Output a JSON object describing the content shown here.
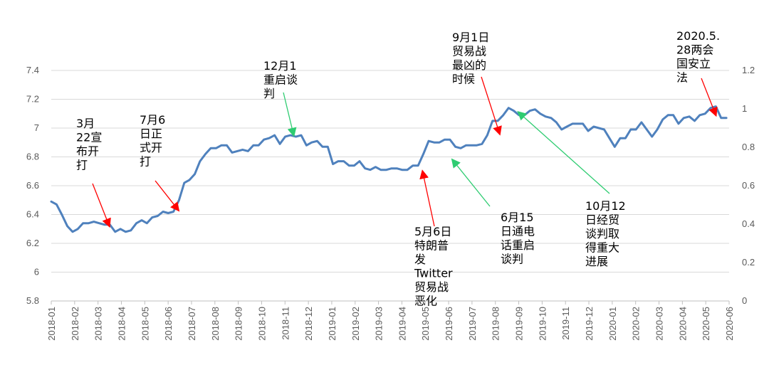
{
  "chart_data": {
    "type": "line",
    "title": "",
    "xlabel": "",
    "ylabel": "",
    "ylim": [
      5.8,
      7.4
    ],
    "yticks": [
      5.8,
      6,
      6.2,
      6.4,
      6.6,
      6.8,
      7,
      7.2,
      7.4
    ],
    "ytick_labels": [
      "5.8",
      "6",
      "6.2",
      "6.4",
      "6.6",
      "6.8",
      "7",
      "7.2",
      "7.4"
    ],
    "y2lim": [
      0,
      1.2
    ],
    "y2ticks": [
      0,
      0.2,
      0.4,
      0.6,
      0.8,
      1,
      1.2
    ],
    "y2tick_labels": [
      "0",
      "0.2",
      "0.4",
      "0.6",
      "0.8",
      "1",
      "1.2"
    ],
    "grid": true,
    "legend": "none",
    "line_color": "#4f81bd",
    "x_tick_labels": [
      "2018-01",
      "2018-02",
      "2018-03",
      "2018-04",
      "2018-05",
      "2018-06",
      "2018-07",
      "2018-08",
      "2018-09",
      "2018-10",
      "2018-11",
      "2018-12",
      "2019-01",
      "2019-02",
      "2019-03",
      "2019-04",
      "2019-05",
      "2019-06",
      "2019-07",
      "2019-08",
      "2019-09",
      "2019-10",
      "2019-11",
      "2019-12",
      "2020-01",
      "2020-02",
      "2020-03",
      "2020-04",
      "2020-05",
      "2020-06"
    ],
    "series": [
      {
        "name": "",
        "x": [
          2018.0,
          2018.019,
          2018.038,
          2018.058,
          2018.077,
          2018.096,
          2018.115,
          2018.135,
          2018.154,
          2018.173,
          2018.192,
          2018.212,
          2018.231,
          2018.25,
          2018.269,
          2018.288,
          2018.308,
          2018.327,
          2018.346,
          2018.365,
          2018.385,
          2018.404,
          2018.423,
          2018.442,
          2018.462,
          2018.481,
          2018.5,
          2018.519,
          2018.538,
          2018.558,
          2018.577,
          2018.596,
          2018.615,
          2018.635,
          2018.654,
          2018.673,
          2018.692,
          2018.712,
          2018.731,
          2018.75,
          2018.769,
          2018.788,
          2018.808,
          2018.827,
          2018.846,
          2018.865,
          2018.885,
          2018.904,
          2018.923,
          2018.942,
          2018.962,
          2018.981,
          2019.0,
          2019.019,
          2019.038,
          2019.058,
          2019.077,
          2019.096,
          2019.115,
          2019.135,
          2019.154,
          2019.173,
          2019.192,
          2019.212,
          2019.231,
          2019.25,
          2019.269,
          2019.288,
          2019.308,
          2019.327,
          2019.346,
          2019.365,
          2019.385,
          2019.404,
          2019.423,
          2019.442,
          2019.462,
          2019.481,
          2019.5,
          2019.519,
          2019.538,
          2019.558,
          2019.577,
          2019.596,
          2019.615,
          2019.635,
          2019.654,
          2019.673,
          2019.692,
          2019.712,
          2019.731,
          2019.75,
          2019.769,
          2019.788,
          2019.808,
          2019.827,
          2019.846,
          2019.865,
          2019.885,
          2019.904,
          2019.923,
          2019.942,
          2019.962,
          2019.981,
          2020.0,
          2020.019,
          2020.038,
          2020.058,
          2020.077,
          2020.096,
          2020.115,
          2020.135,
          2020.154,
          2020.173,
          2020.192,
          2020.212,
          2020.231,
          2020.25,
          2020.269,
          2020.288,
          2020.308,
          2020.327,
          2020.346,
          2020.365,
          2020.385,
          2020.404,
          2020.423,
          2020.442
        ],
        "values": [
          6.49,
          6.47,
          6.4,
          6.32,
          6.28,
          6.3,
          6.34,
          6.34,
          6.35,
          6.34,
          6.33,
          6.33,
          6.28,
          6.3,
          6.28,
          6.29,
          6.34,
          6.36,
          6.34,
          6.38,
          6.39,
          6.42,
          6.41,
          6.42,
          6.5,
          6.62,
          6.64,
          6.68,
          6.77,
          6.82,
          6.86,
          6.86,
          6.88,
          6.88,
          6.83,
          6.84,
          6.85,
          6.84,
          6.88,
          6.88,
          6.92,
          6.93,
          6.95,
          6.89,
          6.94,
          6.95,
          6.94,
          6.95,
          6.88,
          6.9,
          6.91,
          6.87,
          6.87,
          6.75,
          6.77,
          6.77,
          6.74,
          6.74,
          6.77,
          6.72,
          6.71,
          6.73,
          6.71,
          6.71,
          6.72,
          6.72,
          6.71,
          6.71,
          6.74,
          6.74,
          6.82,
          6.91,
          6.9,
          6.9,
          6.92,
          6.92,
          6.87,
          6.86,
          6.88,
          6.88,
          6.88,
          6.89,
          6.95,
          7.05,
          7.05,
          7.09,
          7.14,
          7.12,
          7.09,
          7.09,
          7.12,
          7.13,
          7.1,
          7.08,
          7.07,
          7.04,
          6.99,
          7.01,
          7.03,
          7.03,
          7.03,
          6.98,
          7.01,
          7.0,
          6.99,
          6.93,
          6.87,
          6.93,
          6.93,
          6.99,
          6.99,
          7.04,
          6.99,
          6.94,
          6.99,
          7.06,
          7.09,
          7.09,
          7.03,
          7.07,
          7.08,
          7.05,
          7.09,
          7.1,
          7.14,
          7.15,
          7.07,
          7.07
        ]
      }
    ],
    "annotations": [
      {
        "lines": [
          "3月",
          "22宣",
          "布开",
          "打"
        ],
        "arrow_color": "#ff0000",
        "date": 2018.21,
        "value": 6.32
      },
      {
        "lines": [
          "7月6",
          "日正",
          "式开",
          "打"
        ],
        "arrow_color": "#ff0000",
        "date": 2018.46,
        "value": 6.43
      },
      {
        "lines": [
          "12月1",
          "重启谈",
          "判"
        ],
        "arrow_color": "#2ecc71",
        "date": 2018.877,
        "value": 6.95
      },
      {
        "lines": [
          "5月6日",
          "特朗普",
          "发",
          "Twitter",
          "贸易战",
          "恶化"
        ],
        "arrow_color": "#ff0000",
        "date": 2019.343,
        "value": 6.7
      },
      {
        "lines": [
          "6月15",
          "日通电",
          "话重启",
          "谈判"
        ],
        "arrow_color": "#2ecc71",
        "date": 2019.451,
        "value": 6.78
      },
      {
        "lines": [
          "9月1日",
          "贸易战",
          "最凶的",
          "时候"
        ],
        "arrow_color": "#ff0000",
        "date": 2019.622,
        "value": 6.96
      },
      {
        "lines": [
          "10月12",
          "日经贸",
          "谈判取",
          "得重大",
          "进展"
        ],
        "arrow_color": "#2ecc71",
        "date": 2019.69,
        "value": 7.11
      },
      {
        "lines": [
          "2020.5.",
          "28两会",
          "国安立",
          "法"
        ],
        "arrow_color": "#ff0000",
        "date": 2020.404,
        "value": 7.09
      }
    ]
  }
}
